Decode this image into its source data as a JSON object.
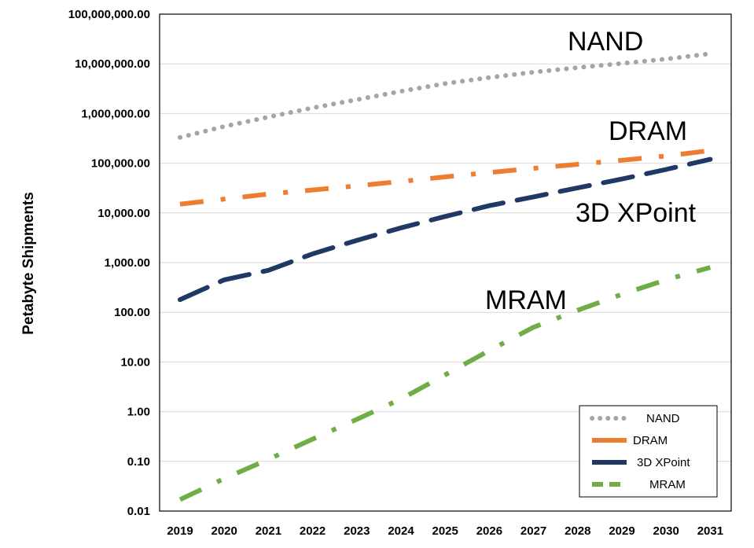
{
  "chart_data": {
    "type": "line",
    "ylabel": "Petabyte Shipments",
    "xlabel": "",
    "title": "",
    "y_scale": "log",
    "ylim": [
      0.01,
      100000000
    ],
    "y_ticks": [
      {
        "value": 0.01,
        "label": "0.01"
      },
      {
        "value": 0.1,
        "label": "0.10"
      },
      {
        "value": 1,
        "label": "1.00"
      },
      {
        "value": 10,
        "label": "10.00"
      },
      {
        "value": 100,
        "label": "100.00"
      },
      {
        "value": 1000,
        "label": "1,000.00"
      },
      {
        "value": 10000,
        "label": "10,000.00"
      },
      {
        "value": 100000,
        "label": "100,000.00"
      },
      {
        "value": 1000000,
        "label": "1,000,000.00"
      },
      {
        "value": 10000000,
        "label": "10,000,000.00"
      },
      {
        "value": 100000000,
        "label": "100,000,000.00"
      }
    ],
    "x": [
      "2019",
      "2020",
      "2021",
      "2022",
      "2023",
      "2024",
      "2025",
      "2026",
      "2027",
      "2028",
      "2029",
      "2030",
      "2031"
    ],
    "grid": "horizontal",
    "legend_position": "bottom-right",
    "series": [
      {
        "name": "NAND",
        "annotation": "NAND",
        "color": "#A5A5A5",
        "style": "dotted",
        "values": [
          330000,
          550000,
          850000,
          1300000,
          1900000,
          2800000,
          4000000,
          5300000,
          6800000,
          8400000,
          10200000,
          12500000,
          16000000
        ]
      },
      {
        "name": "DRAM",
        "annotation": "DRAM",
        "color": "#ED7D31",
        "style": "dash-dot",
        "values": [
          15000,
          19000,
          24000,
          29000,
          35000,
          43000,
          53000,
          65000,
          79000,
          95000,
          115000,
          140000,
          180000
        ]
      },
      {
        "name": "3D XPoint",
        "annotation": "3D XPoint",
        "color": "#1F3864",
        "style": "long-dash",
        "values": [
          180,
          450,
          700,
          1500,
          2800,
          5000,
          8500,
          14000,
          21000,
          32000,
          48000,
          75000,
          120000
        ]
      },
      {
        "name": "MRAM",
        "annotation": "MRAM",
        "color": "#70AD47",
        "style": "dash-dot",
        "values": [
          0.017,
          0.045,
          0.11,
          0.28,
          0.7,
          1.8,
          5.5,
          17,
          50,
          110,
          230,
          450,
          800
        ]
      }
    ]
  }
}
